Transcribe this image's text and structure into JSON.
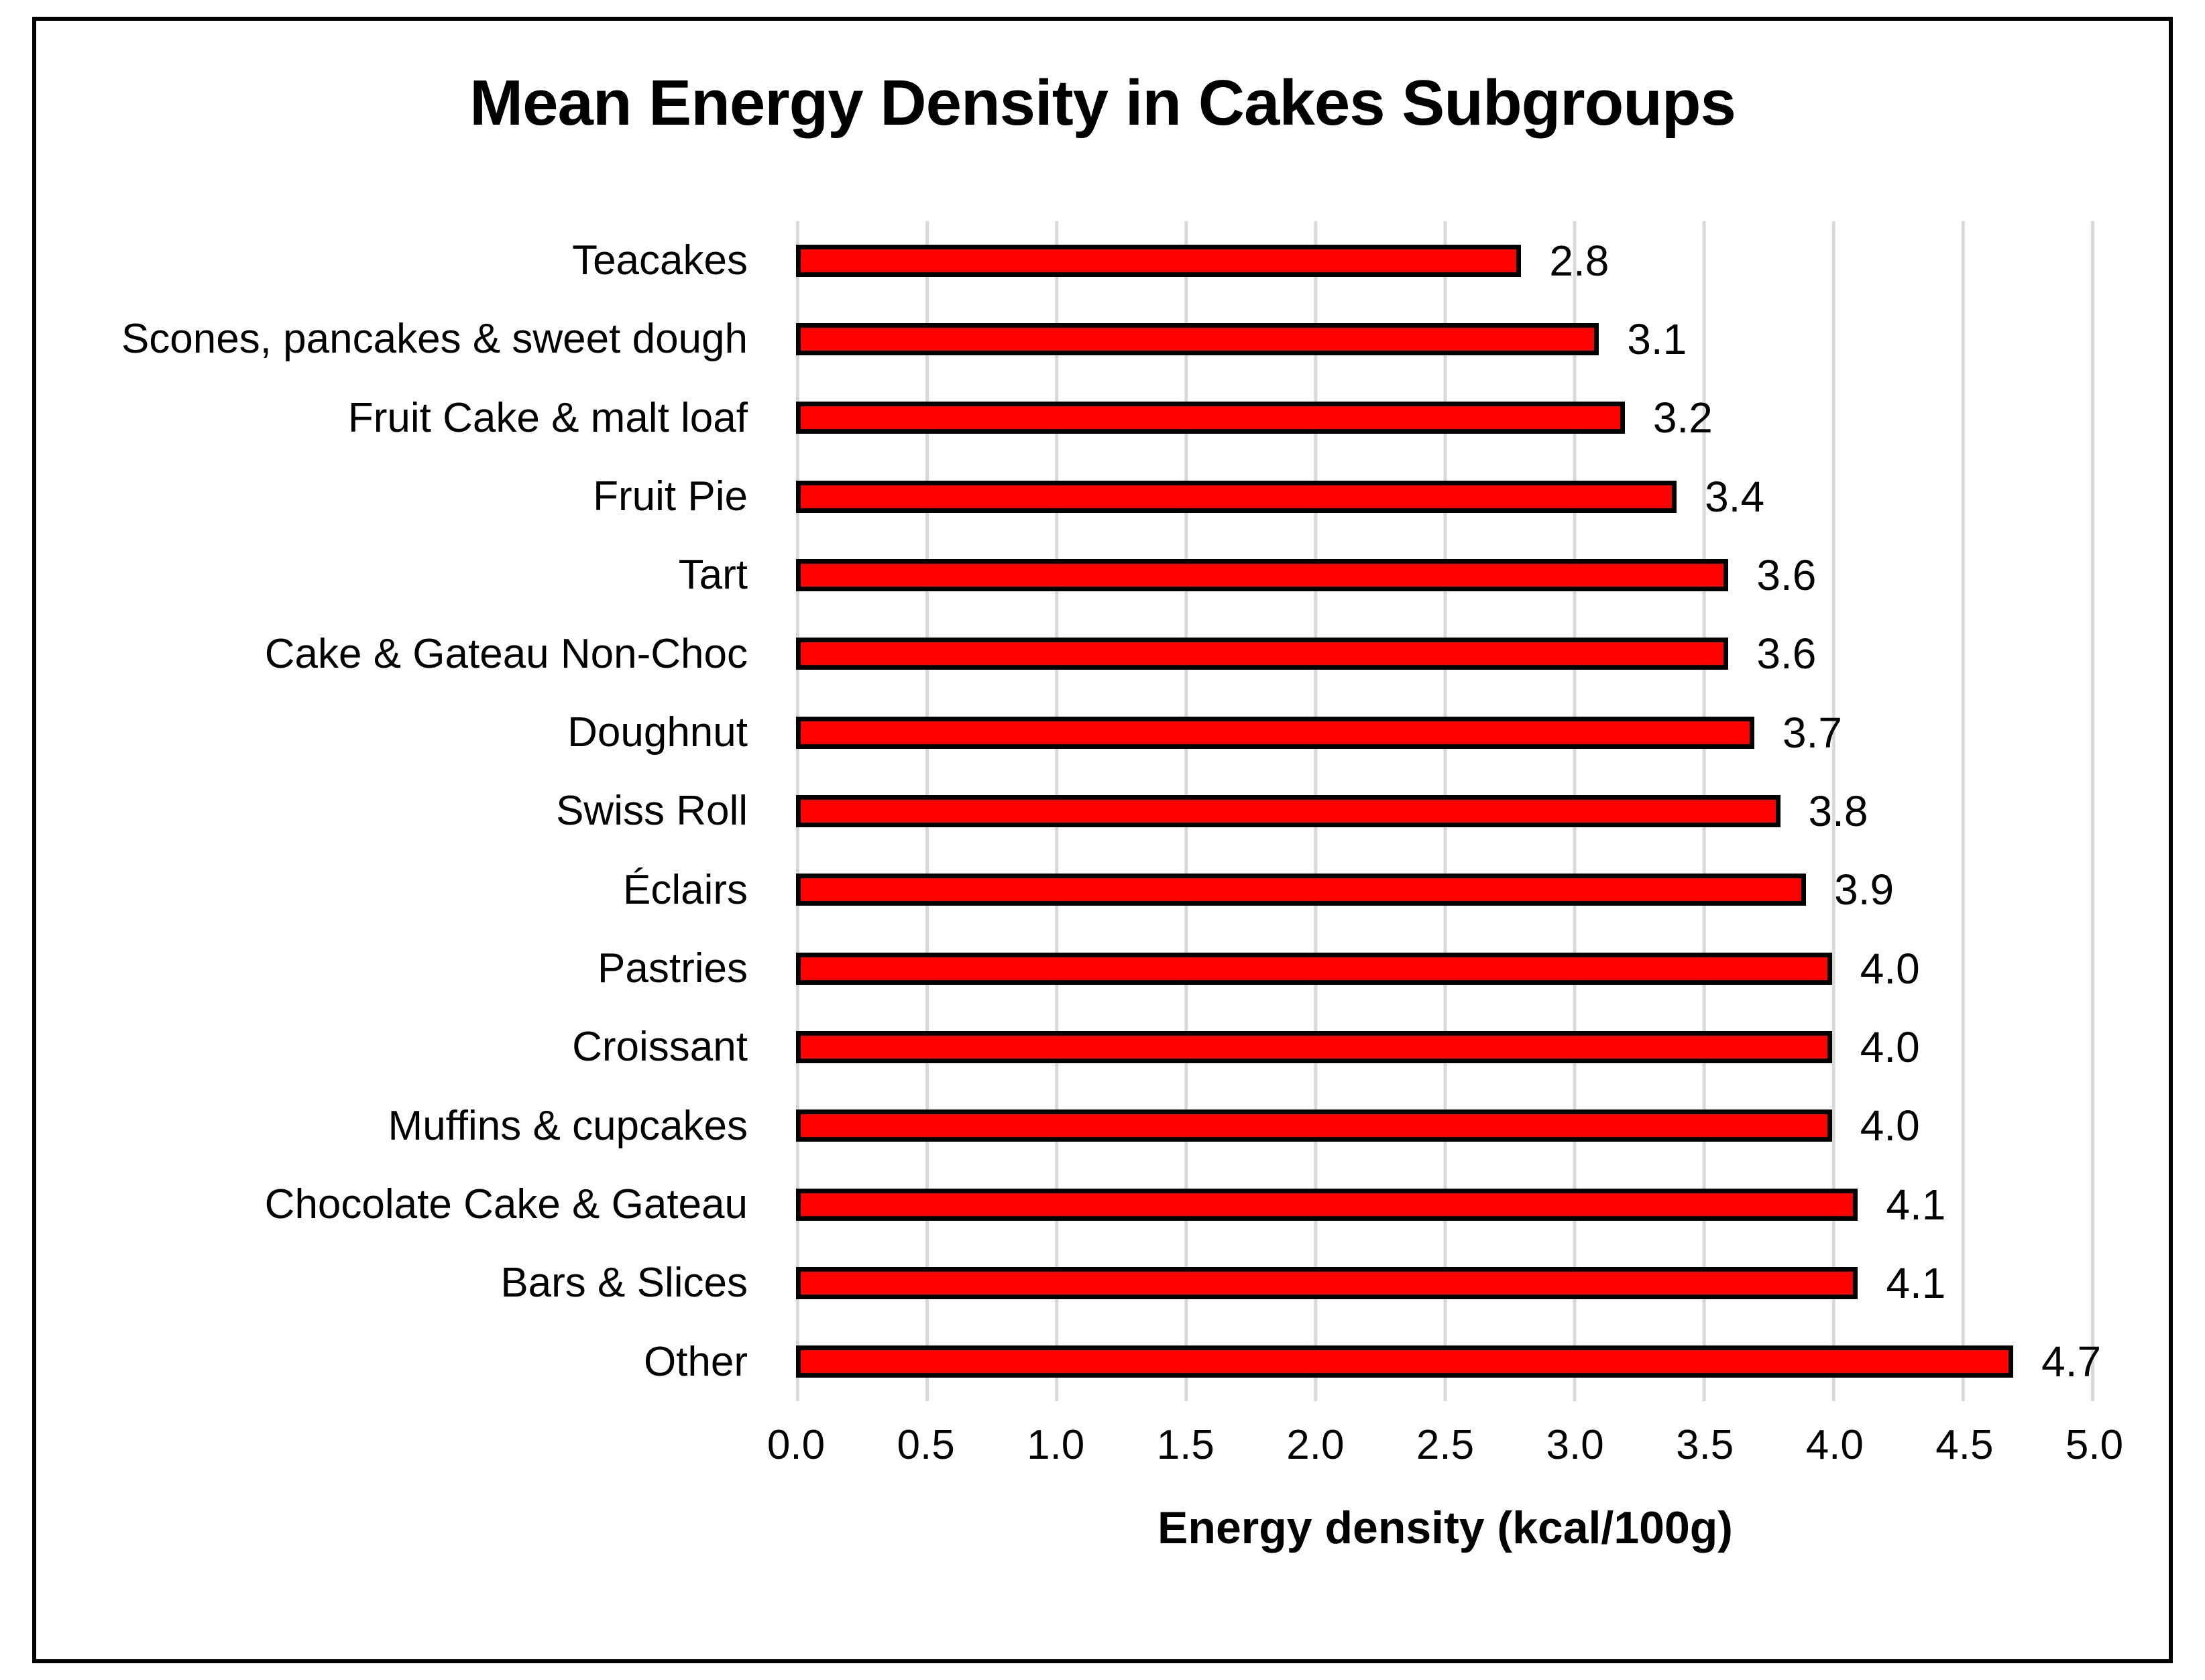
{
  "chart_data": {
    "type": "bar",
    "orientation": "horizontal",
    "title": "Mean Energy Density in Cakes Subgroups",
    "xlabel": "Energy density (kcal/100g)",
    "categories": [
      "Teacakes",
      "Scones, pancakes & sweet dough",
      "Fruit Cake & malt loaf",
      "Fruit Pie",
      "Tart",
      "Cake & Gateau Non-Choc",
      "Doughnut",
      "Swiss Roll",
      "Éclairs",
      "Pastries",
      "Croissant",
      "Muffins & cupcakes",
      "Chocolate Cake & Gateau",
      "Bars & Slices",
      "Other"
    ],
    "values": [
      2.8,
      3.1,
      3.2,
      3.4,
      3.6,
      3.6,
      3.7,
      3.8,
      3.9,
      4.0,
      4.0,
      4.0,
      4.1,
      4.1,
      4.7
    ],
    "value_labels": [
      "2.8",
      "3.1",
      "3.2",
      "3.4",
      "3.6",
      "3.6",
      "3.7",
      "3.8",
      "3.9",
      "4.0",
      "4.0",
      "4.0",
      "4.1",
      "4.1",
      "4.7"
    ],
    "xlim": [
      0,
      5
    ],
    "xticks": [
      "0.0",
      "0.5",
      "1.0",
      "1.5",
      "2.0",
      "2.5",
      "3.0",
      "3.5",
      "4.0",
      "4.5",
      "5.0"
    ],
    "grid": "vertical-gridlines",
    "legend": "none",
    "bar_color": "#FF0000",
    "bar_border_color": "#000000",
    "gridline_color": "#D9D9D9",
    "frame_border_color": "#000000",
    "text_color": "#000000"
  }
}
